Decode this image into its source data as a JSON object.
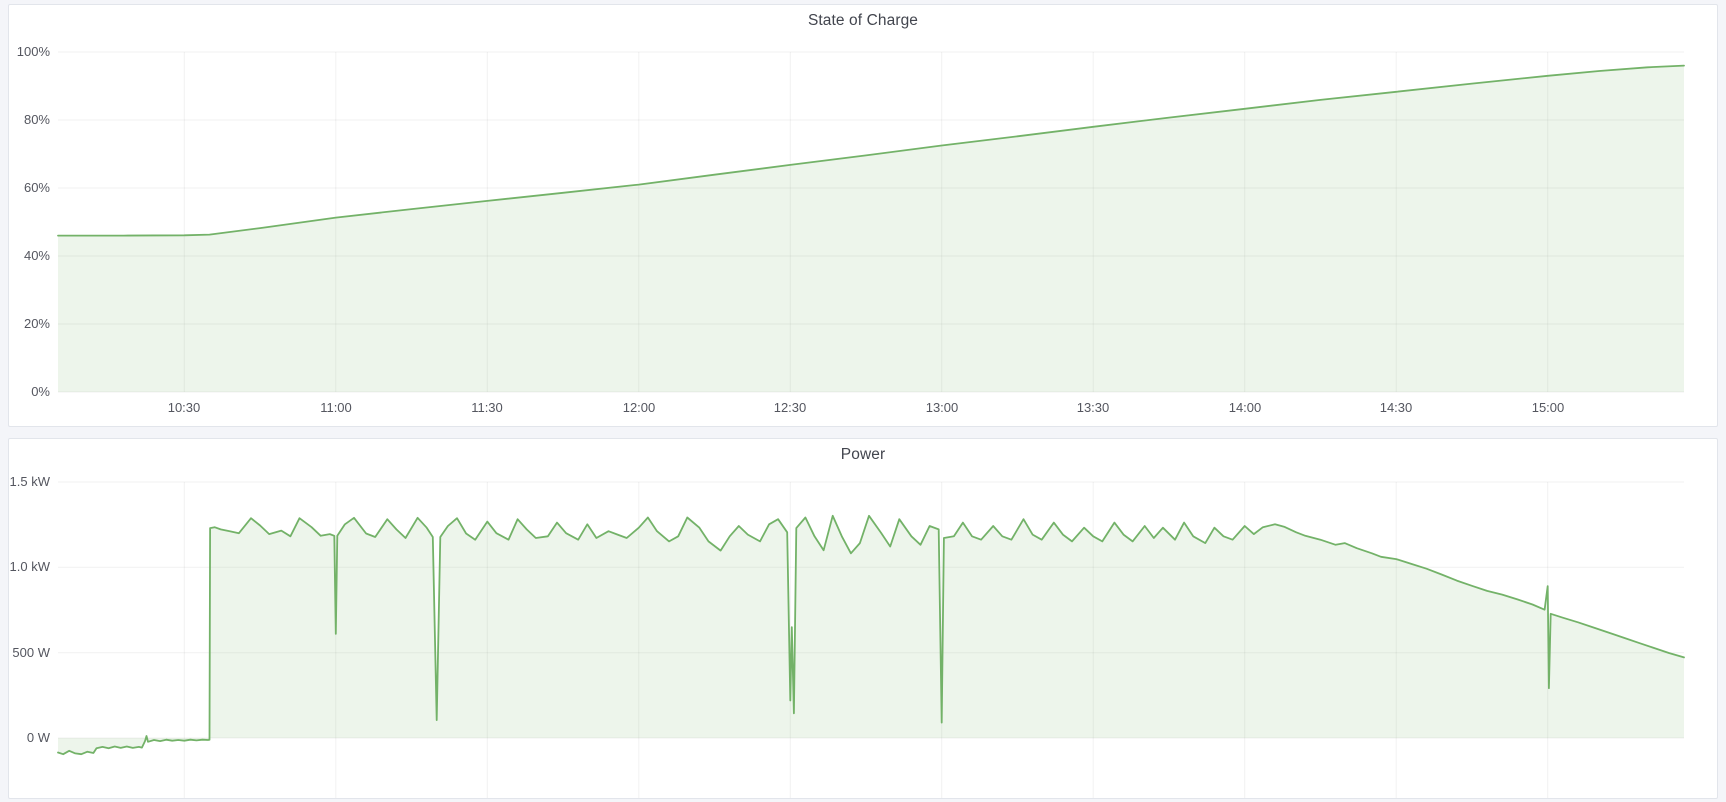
{
  "theme": {
    "page_bg": "#f4f5f9",
    "panel_bg": "#ffffff",
    "panel_border": "#e2e5eb",
    "title_color": "#42454e",
    "tick_color": "#54565f",
    "grid_color": "rgba(0,0,0,0.055)",
    "accent_green": "#73b268",
    "fill_green": "rgba(115,178,104,0.13)"
  },
  "panels": [
    {
      "title": "State of Charge"
    },
    {
      "title": "Power"
    }
  ],
  "chart_data": [
    {
      "type": "area",
      "title": "State of Charge",
      "xlabel": "",
      "ylabel": "",
      "x_unit": "time (decimal hours)",
      "x_range": [
        10.083,
        15.45
      ],
      "x_range_display": [
        "10:05",
        "15:27"
      ],
      "y_range": [
        0,
        100
      ],
      "baseline": 0,
      "grid": true,
      "legend": "hidden",
      "x_ticks": [
        {
          "t": 10.5,
          "label": "10:30"
        },
        {
          "t": 11.0,
          "label": "11:00"
        },
        {
          "t": 11.5,
          "label": "11:30"
        },
        {
          "t": 12.0,
          "label": "12:00"
        },
        {
          "t": 12.5,
          "label": "12:30"
        },
        {
          "t": 13.0,
          "label": "13:00"
        },
        {
          "t": 13.5,
          "label": "13:30"
        },
        {
          "t": 14.0,
          "label": "14:00"
        },
        {
          "t": 14.5,
          "label": "14:30"
        },
        {
          "t": 15.0,
          "label": "15:00"
        }
      ],
      "y_ticks": [
        {
          "v": 100,
          "label": "100%"
        },
        {
          "v": 80,
          "label": "80%"
        },
        {
          "v": 60,
          "label": "60%"
        },
        {
          "v": 40,
          "label": "40%"
        },
        {
          "v": 20,
          "label": "20%"
        },
        {
          "v": 0,
          "label": "0%"
        }
      ],
      "series": [
        {
          "name": "State of Charge (%)",
          "points": [
            [
              10.083,
              46.0
            ],
            [
              10.3,
              46.0
            ],
            [
              10.5,
              46.1
            ],
            [
              10.583,
              46.3
            ],
            [
              10.75,
              48.2
            ],
            [
              11.0,
              51.3
            ],
            [
              11.25,
              53.8
            ],
            [
              11.5,
              56.2
            ],
            [
              11.75,
              58.6
            ],
            [
              12.0,
              61.0
            ],
            [
              12.25,
              63.9
            ],
            [
              12.5,
              66.8
            ],
            [
              12.75,
              69.6
            ],
            [
              13.0,
              72.5
            ],
            [
              13.25,
              75.2
            ],
            [
              13.5,
              78.0
            ],
            [
              13.75,
              80.7
            ],
            [
              14.0,
              83.3
            ],
            [
              14.25,
              85.9
            ],
            [
              14.5,
              88.3
            ],
            [
              14.75,
              90.7
            ],
            [
              15.0,
              93.0
            ],
            [
              15.17,
              94.4
            ],
            [
              15.33,
              95.5
            ],
            [
              15.45,
              96.0
            ]
          ]
        }
      ]
    },
    {
      "type": "area",
      "title": "Power",
      "xlabel": "",
      "ylabel": "",
      "x_unit": "time (decimal hours)",
      "x_range": [
        10.083,
        15.45
      ],
      "x_range_display": [
        "10:05",
        "15:27"
      ],
      "y_range": [
        -375,
        1500
      ],
      "baseline": 0,
      "grid": true,
      "legend": "hidden",
      "x_axis_labels_visible": false,
      "x_ticks": [
        {
          "t": 10.5
        },
        {
          "t": 11.0
        },
        {
          "t": 11.5
        },
        {
          "t": 12.0
        },
        {
          "t": 12.5
        },
        {
          "t": 13.0
        },
        {
          "t": 13.5
        },
        {
          "t": 14.0
        },
        {
          "t": 14.5
        },
        {
          "t": 15.0
        }
      ],
      "y_ticks": [
        {
          "v": 1500,
          "label": "1.5 kW"
        },
        {
          "v": 1000,
          "label": "1.0 kW"
        },
        {
          "v": 500,
          "label": "500 W"
        },
        {
          "v": 0,
          "label": "0 W"
        }
      ],
      "series": [
        {
          "name": "Power (W)",
          "points": [
            [
              10.083,
              -85
            ],
            [
              10.1,
              -95
            ],
            [
              10.12,
              -75
            ],
            [
              10.14,
              -90
            ],
            [
              10.16,
              -95
            ],
            [
              10.18,
              -80
            ],
            [
              10.2,
              -88
            ],
            [
              10.21,
              -60
            ],
            [
              10.23,
              -52
            ],
            [
              10.25,
              -60
            ],
            [
              10.27,
              -50
            ],
            [
              10.29,
              -58
            ],
            [
              10.31,
              -50
            ],
            [
              10.33,
              -58
            ],
            [
              10.35,
              -52
            ],
            [
              10.36,
              -56
            ],
            [
              10.37,
              -18
            ],
            [
              10.375,
              12
            ],
            [
              10.38,
              -22
            ],
            [
              10.4,
              -12
            ],
            [
              10.42,
              -18
            ],
            [
              10.44,
              -10
            ],
            [
              10.46,
              -16
            ],
            [
              10.48,
              -12
            ],
            [
              10.5,
              -16
            ],
            [
              10.52,
              -10
            ],
            [
              10.54,
              -14
            ],
            [
              10.56,
              -10
            ],
            [
              10.578,
              -12
            ],
            [
              10.583,
              -10
            ],
            [
              10.585,
              1230
            ],
            [
              10.6,
              1235
            ],
            [
              10.62,
              1222
            ],
            [
              10.65,
              1212
            ],
            [
              10.68,
              1200
            ],
            [
              10.72,
              1288
            ],
            [
              10.75,
              1245
            ],
            [
              10.78,
              1195
            ],
            [
              10.82,
              1215
            ],
            [
              10.85,
              1182
            ],
            [
              10.88,
              1288
            ],
            [
              10.92,
              1235
            ],
            [
              10.95,
              1185
            ],
            [
              10.98,
              1195
            ],
            [
              10.995,
              1185
            ],
            [
              11.0,
              610
            ],
            [
              11.005,
              1185
            ],
            [
              11.03,
              1252
            ],
            [
              11.06,
              1290
            ],
            [
              11.1,
              1198
            ],
            [
              11.13,
              1178
            ],
            [
              11.17,
              1282
            ],
            [
              11.2,
              1222
            ],
            [
              11.23,
              1172
            ],
            [
              11.27,
              1290
            ],
            [
              11.3,
              1232
            ],
            [
              11.32,
              1178
            ],
            [
              11.333,
              105
            ],
            [
              11.345,
              1178
            ],
            [
              11.37,
              1242
            ],
            [
              11.4,
              1288
            ],
            [
              11.43,
              1198
            ],
            [
              11.46,
              1162
            ],
            [
              11.5,
              1268
            ],
            [
              11.53,
              1200
            ],
            [
              11.57,
              1162
            ],
            [
              11.6,
              1282
            ],
            [
              11.63,
              1222
            ],
            [
              11.66,
              1172
            ],
            [
              11.7,
              1182
            ],
            [
              11.73,
              1262
            ],
            [
              11.76,
              1200
            ],
            [
              11.8,
              1162
            ],
            [
              11.83,
              1252
            ],
            [
              11.86,
              1172
            ],
            [
              11.9,
              1212
            ],
            [
              11.93,
              1192
            ],
            [
              11.96,
              1172
            ],
            [
              12.0,
              1232
            ],
            [
              12.03,
              1292
            ],
            [
              12.06,
              1212
            ],
            [
              12.1,
              1152
            ],
            [
              12.13,
              1182
            ],
            [
              12.16,
              1292
            ],
            [
              12.2,
              1232
            ],
            [
              12.23,
              1152
            ],
            [
              12.27,
              1098
            ],
            [
              12.3,
              1182
            ],
            [
              12.33,
              1242
            ],
            [
              12.36,
              1192
            ],
            [
              12.4,
              1152
            ],
            [
              12.43,
              1252
            ],
            [
              12.46,
              1282
            ],
            [
              12.49,
              1205
            ],
            [
              12.5,
              220
            ],
            [
              12.505,
              650
            ],
            [
              12.512,
              145
            ],
            [
              12.52,
              1230
            ],
            [
              12.55,
              1292
            ],
            [
              12.58,
              1182
            ],
            [
              12.61,
              1100
            ],
            [
              12.64,
              1302
            ],
            [
              12.67,
              1182
            ],
            [
              12.7,
              1082
            ],
            [
              12.73,
              1142
            ],
            [
              12.76,
              1302
            ],
            [
              12.8,
              1202
            ],
            [
              12.83,
              1122
            ],
            [
              12.86,
              1282
            ],
            [
              12.9,
              1182
            ],
            [
              12.93,
              1132
            ],
            [
              12.96,
              1242
            ],
            [
              12.99,
              1222
            ],
            [
              13.0,
              90
            ],
            [
              13.007,
              1172
            ],
            [
              13.04,
              1182
            ],
            [
              13.07,
              1262
            ],
            [
              13.1,
              1182
            ],
            [
              13.13,
              1162
            ],
            [
              13.17,
              1242
            ],
            [
              13.2,
              1182
            ],
            [
              13.23,
              1162
            ],
            [
              13.27,
              1282
            ],
            [
              13.3,
              1192
            ],
            [
              13.33,
              1162
            ],
            [
              13.37,
              1262
            ],
            [
              13.4,
              1192
            ],
            [
              13.43,
              1152
            ],
            [
              13.47,
              1232
            ],
            [
              13.5,
              1182
            ],
            [
              13.53,
              1152
            ],
            [
              13.57,
              1262
            ],
            [
              13.6,
              1192
            ],
            [
              13.63,
              1152
            ],
            [
              13.67,
              1242
            ],
            [
              13.7,
              1172
            ],
            [
              13.73,
              1232
            ],
            [
              13.77,
              1162
            ],
            [
              13.8,
              1262
            ],
            [
              13.83,
              1182
            ],
            [
              13.87,
              1142
            ],
            [
              13.9,
              1232
            ],
            [
              13.93,
              1182
            ],
            [
              13.96,
              1162
            ],
            [
              14.0,
              1242
            ],
            [
              14.03,
              1195
            ],
            [
              14.06,
              1235
            ],
            [
              14.1,
              1252
            ],
            [
              14.13,
              1238
            ],
            [
              14.17,
              1205
            ],
            [
              14.2,
              1185
            ],
            [
              14.25,
              1162
            ],
            [
              14.3,
              1132
            ],
            [
              14.33,
              1142
            ],
            [
              14.37,
              1112
            ],
            [
              14.42,
              1082
            ],
            [
              14.45,
              1062
            ],
            [
              14.5,
              1048
            ],
            [
              14.55,
              1020
            ],
            [
              14.6,
              992
            ],
            [
              14.65,
              958
            ],
            [
              14.7,
              922
            ],
            [
              14.75,
              892
            ],
            [
              14.8,
              862
            ],
            [
              14.85,
              840
            ],
            [
              14.9,
              812
            ],
            [
              14.95,
              782
            ],
            [
              14.99,
              752
            ],
            [
              15.0,
              890
            ],
            [
              15.004,
              292
            ],
            [
              15.01,
              728
            ],
            [
              15.05,
              705
            ],
            [
              15.1,
              678
            ],
            [
              15.15,
              648
            ],
            [
              15.2,
              618
            ],
            [
              15.25,
              588
            ],
            [
              15.3,
              558
            ],
            [
              15.35,
              528
            ],
            [
              15.4,
              498
            ],
            [
              15.45,
              472
            ]
          ]
        }
      ]
    }
  ]
}
